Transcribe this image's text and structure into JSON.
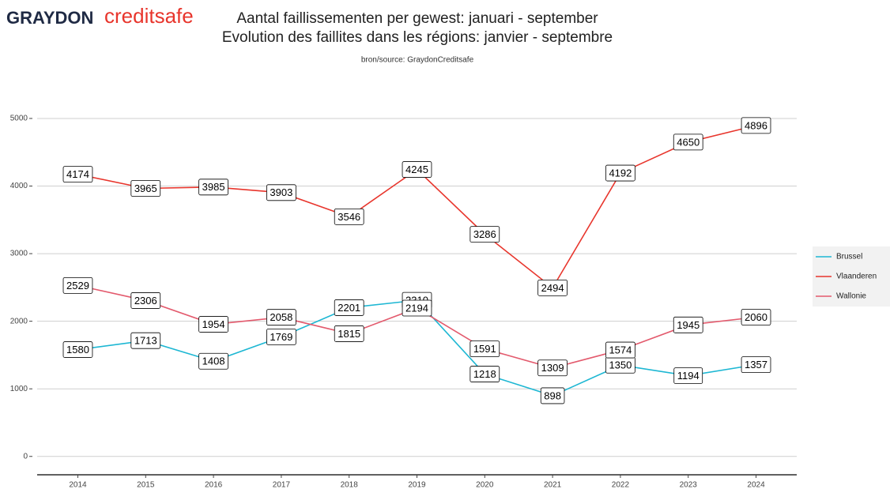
{
  "logo": {
    "brand": "GRAYDON",
    "product": "creditsafe"
  },
  "chart_data": {
    "type": "line",
    "title": "Aantal faillissementen per gewest: januari - september",
    "subtitle": "Evolution des faillites dans les régions: janvier - septembre",
    "caption": "bron/source: GraydonCreditsafe",
    "categories": [
      "2014",
      "2015",
      "2016",
      "2017",
      "2018",
      "2019",
      "2020",
      "2021",
      "2022",
      "2023",
      "2024"
    ],
    "series": [
      {
        "name": "Brussel",
        "color": "#1db7d3",
        "values": [
          1580,
          1713,
          1408,
          1769,
          2201,
          2310,
          1218,
          898,
          1350,
          1194,
          1357
        ]
      },
      {
        "name": "Vlaanderen",
        "color": "#e8352c",
        "values": [
          4174,
          3965,
          3985,
          3903,
          3546,
          4245,
          3286,
          2494,
          4192,
          4650,
          4896
        ]
      },
      {
        "name": "Wallonie",
        "color": "#e35a6d",
        "values": [
          2529,
          2306,
          1954,
          2058,
          1815,
          2194,
          1591,
          1309,
          1574,
          1945,
          2060
        ]
      }
    ],
    "ylim": [
      -260,
      5350
    ],
    "yticks": [
      0,
      1000,
      2000,
      3000,
      4000,
      5000
    ],
    "grid": true,
    "legend": "right"
  }
}
